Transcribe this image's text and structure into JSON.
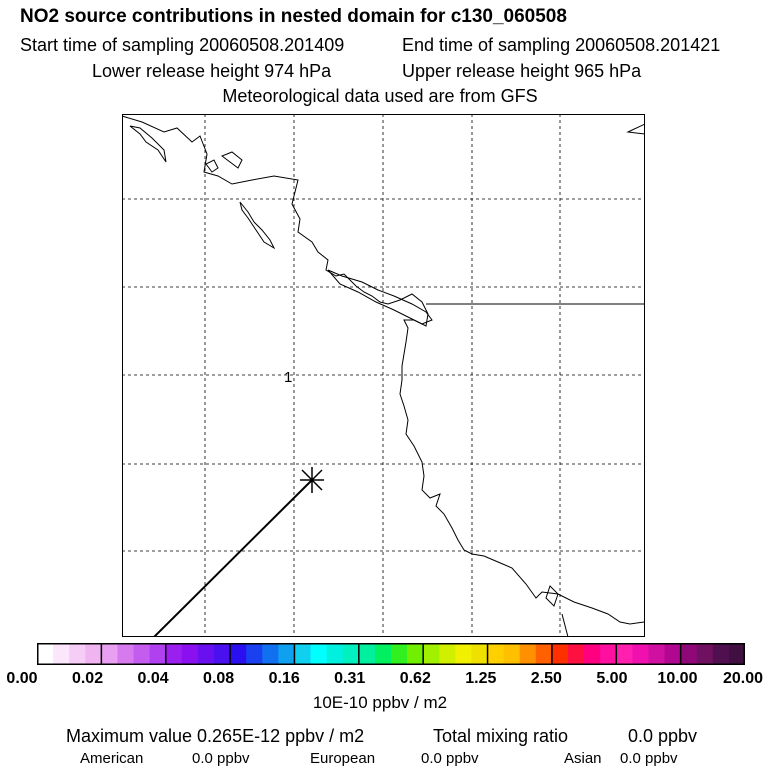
{
  "header": {
    "title": "NO2 source contributions in nested domain for c130_060508",
    "start_time": "Start time of sampling 20060508.201409",
    "end_time": "End time of sampling 20060508.201421",
    "lower_height": "Lower release height  974 hPa",
    "upper_height": "Upper release height  965 hPa",
    "met_data": "Meteorological data used are from GFS"
  },
  "map": {
    "contour_label": "1",
    "marker": "release-point-asterisk",
    "colors": {
      "coastline": "#000000",
      "grid": "#000000",
      "track": "#000000"
    }
  },
  "colorbar": {
    "labels": [
      "0.00",
      "0.02",
      "0.04",
      "0.08",
      "0.16",
      "0.31",
      "0.62",
      "1.25",
      "2.50",
      "5.00",
      "10.00",
      "20.00"
    ],
    "colors": [
      "#ffffff",
      "#fbe6fb",
      "#f6cdf6",
      "#f0b4f0",
      "#eaa0f2",
      "#d77af0",
      "#c45cf0",
      "#b040f0",
      "#9b20f0",
      "#8a10f0",
      "#6a10f0",
      "#4a10f0",
      "#2a10f0",
      "#1a40f0",
      "#1070f0",
      "#10a0f0",
      "#10d0f0",
      "#00ffff",
      "#00f0e0",
      "#00f0c0",
      "#00f0a0",
      "#00f060",
      "#30f020",
      "#70f000",
      "#a0f000",
      "#d0f000",
      "#f0f000",
      "#f0e000",
      "#ffd000",
      "#ffc000",
      "#ff9000",
      "#ff6000",
      "#ff3000",
      "#ff1040",
      "#ff0080",
      "#ff10a0",
      "#ff20b0",
      "#f010b0",
      "#d010a0",
      "#b00890",
      "#900878",
      "#701060",
      "#501050",
      "#401040"
    ],
    "unit": "10E-10 ppbv / m2"
  },
  "footer": {
    "max_value": "Maximum value  0.265E-12 ppbv / m2",
    "total_label": "Total mixing ratio",
    "total_value": "0.0 ppbv",
    "american_label": "American",
    "american_value": "0.0 ppbv",
    "european_label": "European",
    "european_value": "0.0 ppbv",
    "asian_label": "Asian",
    "asian_value": "0.0 ppbv"
  }
}
